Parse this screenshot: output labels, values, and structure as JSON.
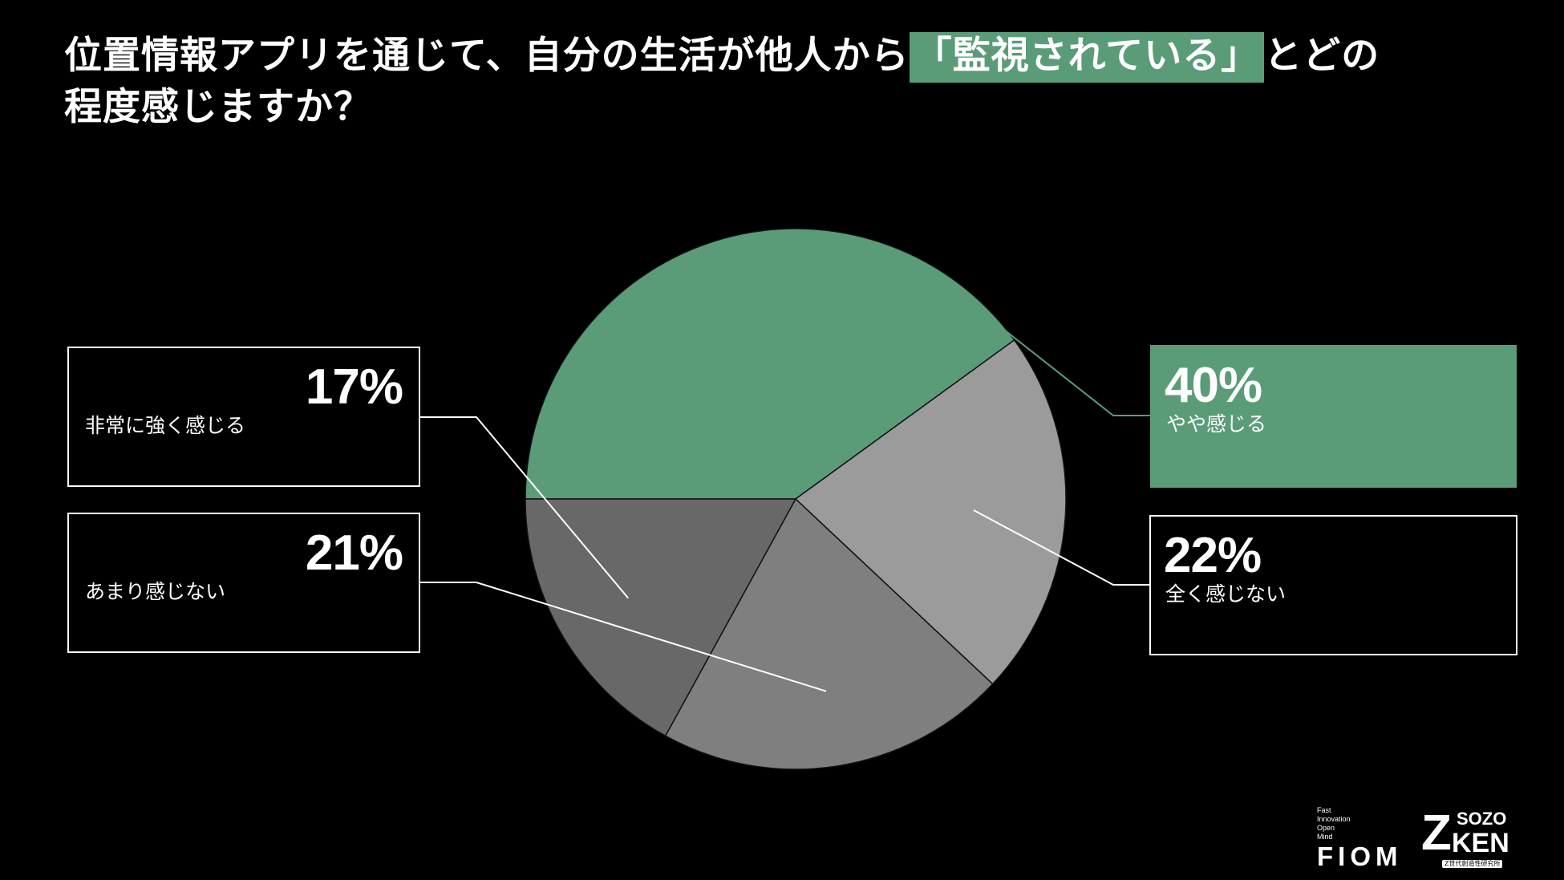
{
  "title": {
    "part1": "位置情報アプリを通じて、自分の生活が他人から",
    "highlight": "「監視されている」",
    "part2": "とどの",
    "line2": "程度感じますか？"
  },
  "colors": {
    "background": "#000000",
    "accent_green": "#5a9c78",
    "slice_light_gray": "#9b9b9b",
    "slice_mid_gray": "#7f7f7f",
    "slice_dark_gray": "#686868"
  },
  "chart_data": {
    "type": "pie",
    "slices": [
      {
        "label": "やや感じる",
        "value": 40,
        "display": "40%",
        "color": "#5a9c78"
      },
      {
        "label": "全く感じない",
        "value": 22,
        "display": "22%",
        "color": "#9b9b9b"
      },
      {
        "label": "あまり感じない",
        "value": 21,
        "display": "21%",
        "color": "#7f7f7f"
      },
      {
        "label": "非常に強く感じる",
        "value": 17,
        "display": "17%",
        "color": "#686868"
      }
    ],
    "title": "位置情報アプリを通じて、自分の生活が他人から「監視されている」とどの程度感じますか？"
  },
  "logos": {
    "fiom_small": [
      "Fast",
      "Innovation",
      "Open",
      "Mind"
    ],
    "fiom_big": "FIOM",
    "sozo_z": "Z",
    "sozo_top": "SOZO",
    "sozo_bottom": "KEN",
    "sozo_sub": "Z世代創造性研究所"
  }
}
